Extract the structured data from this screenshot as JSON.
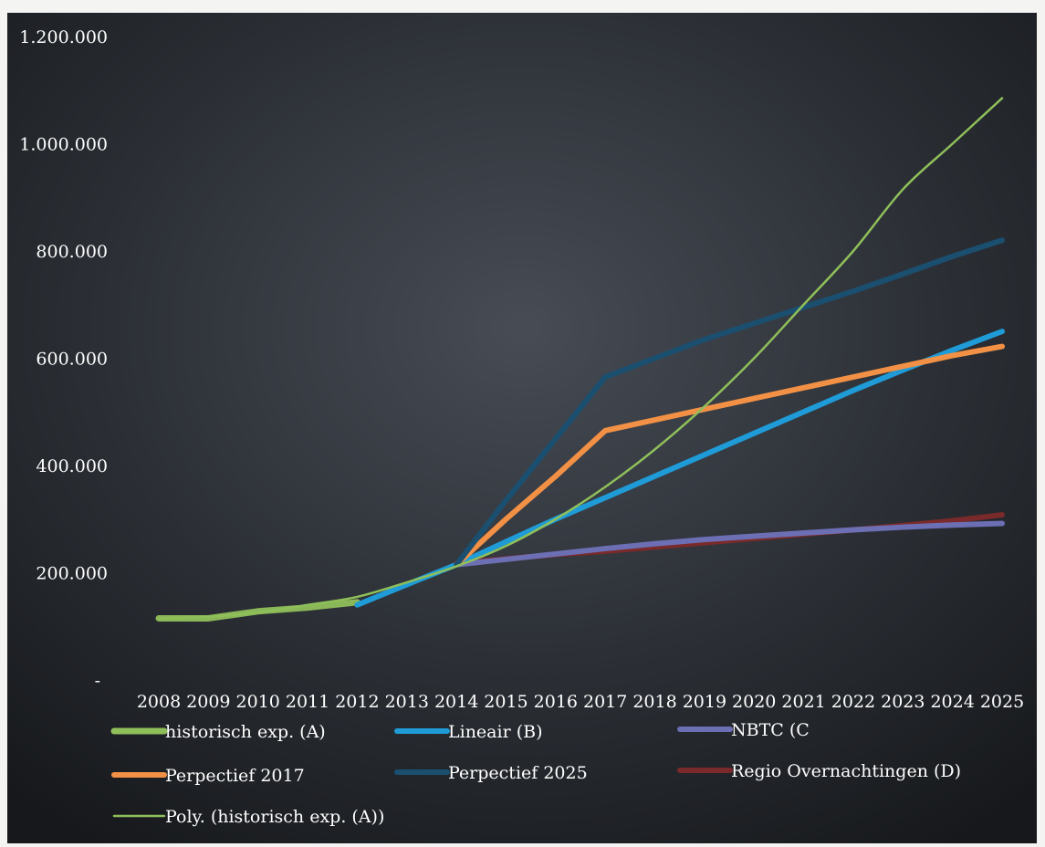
{
  "chart_data": {
    "type": "line",
    "title": "",
    "xlabel": "",
    "ylabel": "",
    "categories": [
      "2008",
      "2009",
      "2010",
      "2011",
      "2012",
      "2013",
      "2014",
      "2015",
      "2016",
      "2017",
      "2018",
      "2019",
      "2020",
      "2021",
      "2022",
      "2023",
      "2024",
      "2025"
    ],
    "ylim": [
      0,
      1200000
    ],
    "y_ticks": [
      {
        "value": 0,
        "label": "-"
      },
      {
        "value": 200000,
        "label": "200.000"
      },
      {
        "value": 400000,
        "label": "400.000"
      },
      {
        "value": 600000,
        "label": "600.000"
      },
      {
        "value": 800000,
        "label": "800.000"
      },
      {
        "value": 1000000,
        "label": "1.000.000"
      },
      {
        "value": 1200000,
        "label": "1.200.000"
      }
    ],
    "grid": false,
    "legend_position": "bottom",
    "series": [
      {
        "name": "historisch exp. (A)",
        "color": "#8fbf5a",
        "width": 7,
        "opacity": 0.95,
        "values": [
          115000,
          115000,
          128000,
          135000,
          145000,
          null,
          null,
          null,
          null,
          null,
          null,
          null,
          null,
          null,
          null,
          null,
          null,
          null
        ]
      },
      {
        "name": "Lineair (B)",
        "color": "#1f9bd7",
        "width": 6,
        "opacity": 1,
        "values": [
          null,
          null,
          null,
          null,
          140000,
          178000,
          215000,
          258000,
          300000,
          340000,
          380000,
          420000,
          460000,
          500000,
          540000,
          578000,
          615000,
          650000
        ]
      },
      {
        "name": "NBTC (C",
        "color": "#6c6fb3",
        "width": 6,
        "opacity": 1,
        "values": [
          null,
          null,
          null,
          null,
          null,
          null,
          215000,
          225000,
          235000,
          245000,
          254000,
          262000,
          268000,
          274000,
          280000,
          285000,
          289000,
          292000
        ]
      },
      {
        "name": "Perpectief 2017",
        "color": "#f29145",
        "width": 6,
        "opacity": 1,
        "values": [
          null,
          null,
          null,
          null,
          null,
          null,
          215000,
          300000,
          380000,
          465000,
          485000,
          505000,
          525000,
          545000,
          565000,
          585000,
          605000,
          622000
        ]
      },
      {
        "name": "Perpectief 2025",
        "color": "#1b4f70",
        "width": 6,
        "opacity": 1,
        "values": [
          null,
          null,
          null,
          null,
          null,
          null,
          215000,
          335000,
          450000,
          565000,
          600000,
          635000,
          665000,
          695000,
          725000,
          757000,
          790000,
          820000
        ]
      },
      {
        "name": "Regio Overnachtingen (D)",
        "color": "#7a2a2a",
        "width": 6,
        "opacity": 1,
        "values": [
          null,
          null,
          null,
          null,
          null,
          null,
          218000,
          226000,
          234000,
          240000,
          248000,
          256000,
          264000,
          272000,
          280000,
          288000,
          297000,
          308000
        ]
      },
      {
        "name": "Poly. (historisch exp. (A))",
        "color": "#8fbf5a",
        "width": 2.5,
        "opacity": 1,
        "values": [
          115000,
          118000,
          126000,
          140000,
          155000,
          182000,
          212000,
          250000,
          300000,
          360000,
          430000,
          510000,
          600000,
          700000,
          800000,
          915000,
          1000000,
          1085000
        ]
      }
    ]
  }
}
